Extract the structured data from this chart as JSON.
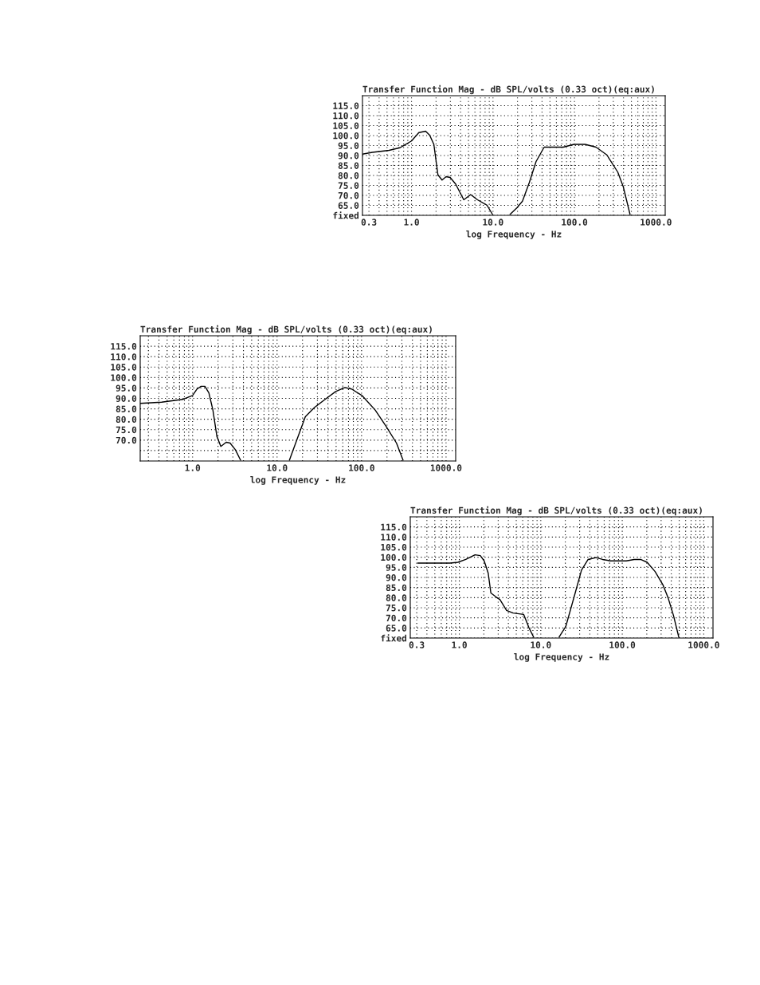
{
  "chart_data": [
    {
      "type": "line",
      "title": "Transfer Function Mag - dB SPL/volts (0.33 oct)(eq:aux)",
      "xlabel": "log Frequency - Hz",
      "log": "x",
      "grid": true,
      "xlim": [
        0.25,
        1300
      ],
      "ylim": [
        60,
        120
      ],
      "xticks": [
        0.3,
        {
          "value": 1,
          "label": "1.0"
        },
        {
          "value": 10,
          "label": "10.0"
        },
        {
          "value": 100,
          "label": "100.0"
        },
        {
          "value": 1000,
          "label": "1000.0"
        }
      ],
      "yticks": [
        {
          "value": 60,
          "label": "fixed"
        },
        {
          "value": 65,
          "label": "65.0"
        },
        {
          "value": 70,
          "label": "70.0"
        },
        {
          "value": 75,
          "label": "75.0"
        },
        {
          "value": 80,
          "label": "80.0"
        },
        {
          "value": 85,
          "label": "85.0"
        },
        {
          "value": 90,
          "label": "90.0"
        },
        {
          "value": 95,
          "label": "95.0"
        },
        {
          "value": 100,
          "label": "100.0"
        },
        {
          "value": 105,
          "label": "105.0"
        },
        {
          "value": 110,
          "label": "110.0"
        },
        {
          "value": 115,
          "label": "115.0"
        }
      ],
      "series": [
        {
          "color": "#000000",
          "x": [
            0.25,
            0.33,
            0.53,
            0.72,
            1.0,
            1.23,
            1.49,
            1.67,
            1.88,
            2.11,
            2.37,
            2.66,
            2.98,
            3.48,
            4.38,
            5.32,
            6.45,
            8.44,
            9.85
          ],
          "values": [
            90.7,
            91.6,
            92.6,
            93.9,
            97.3,
            101.5,
            102.2,
            100.2,
            95.6,
            80.3,
            77.7,
            79.4,
            79.0,
            75.7,
            67.8,
            70.4,
            67.8,
            65.1,
            60.5
          ]
        },
        {
          "color": "#000000",
          "x": [
            16.2,
            19.7,
            23.0,
            27.9,
            33.8,
            42.5,
            57.9,
            72.9,
            98.6,
            135,
            184,
            250,
            340,
            397,
            481
          ],
          "values": [
            60.5,
            63.8,
            67.1,
            76.4,
            87.0,
            94.2,
            94.2,
            94.2,
            95.6,
            95.6,
            94.2,
            90.3,
            81.7,
            74.4,
            60.5
          ]
        }
      ]
    },
    {
      "type": "line",
      "title": "Transfer Function Mag - dB SPL/volts (0.33 oct)(eq:aux)",
      "xlabel": "log Frequency - Hz",
      "log": "x",
      "grid": true,
      "xlim": [
        0.24,
        1300
      ],
      "ylim": [
        60,
        120
      ],
      "xticks": [
        {
          "value": 0.3,
          "label": null
        },
        {
          "value": 1,
          "label": "1.0"
        },
        {
          "value": 10,
          "label": "10.0"
        },
        {
          "value": 100,
          "label": "100.0"
        },
        {
          "value": 1000,
          "label": "1000.0"
        }
      ],
      "yticks": [
        {
          "value": 65,
          "label": null
        },
        {
          "value": 70,
          "label": "70.0"
        },
        {
          "value": 75,
          "label": "75.0"
        },
        {
          "value": 80,
          "label": "80.0"
        },
        {
          "value": 85,
          "label": "85.0"
        },
        {
          "value": 90,
          "label": "90.0"
        },
        {
          "value": 95,
          "label": "95.0"
        },
        {
          "value": 100,
          "label": "100.0"
        },
        {
          "value": 105,
          "label": "105.0"
        },
        {
          "value": 110,
          "label": "110.0"
        },
        {
          "value": 115,
          "label": "115.0"
        }
      ],
      "series": [
        {
          "color": "#000000",
          "x": [
            0.24,
            0.43,
            0.76,
            1.0,
            1.13,
            1.26,
            1.4,
            1.56,
            1.74,
            1.94,
            2.16,
            2.5,
            2.78,
            3.21,
            3.7
          ],
          "values": [
            87.6,
            88.2,
            89.5,
            91.4,
            94.5,
            95.8,
            95.8,
            92.6,
            84.4,
            71.8,
            67.0,
            69.0,
            68.6,
            65.4,
            60.4
          ]
        },
        {
          "color": "#000000",
          "x": [
            14.0,
            16.8,
            21.6,
            27.8,
            37.0,
            49.4,
            63.5,
            76.1,
            101,
            145,
            194,
            259,
            310
          ],
          "values": [
            60.4,
            69.2,
            81.2,
            85.7,
            89.5,
            93.3,
            95.2,
            94.5,
            91.4,
            84.4,
            76.8,
            68.6,
            60.4
          ]
        }
      ]
    },
    {
      "type": "line",
      "title": "Transfer Function Mag - dB SPL/volts (0.33 oct)(eq:aux)",
      "xlabel": "log Frequency - Hz",
      "log": "x",
      "grid": true,
      "xlim": [
        0.25,
        1300
      ],
      "ylim": [
        60,
        120
      ],
      "xticks": [
        0.3,
        {
          "value": 1,
          "label": "1.0"
        },
        {
          "value": 10,
          "label": "10.0"
        },
        {
          "value": 100,
          "label": "100.0"
        },
        {
          "value": 1000,
          "label": "1000.0"
        }
      ],
      "yticks": [
        {
          "value": 60,
          "label": "fixed"
        },
        {
          "value": 65,
          "label": "65.0"
        },
        {
          "value": 70,
          "label": "70.0"
        },
        {
          "value": 75,
          "label": "75.0"
        },
        {
          "value": 80,
          "label": "80.0"
        },
        {
          "value": 85,
          "label": "85.0"
        },
        {
          "value": 90,
          "label": "90.0"
        },
        {
          "value": 95,
          "label": "95.0"
        },
        {
          "value": 100,
          "label": "100.0"
        },
        {
          "value": 105,
          "label": "105.0"
        },
        {
          "value": 110,
          "label": "110.0"
        },
        {
          "value": 115,
          "label": "115.0"
        }
      ],
      "series": [
        {
          "color": "#000000",
          "x": [
            0.31,
            0.77,
            0.96,
            1.2,
            1.56,
            1.81,
            2.02,
            2.26,
            2.44,
            2.83,
            3.16,
            3.8,
            4.58,
            6.16,
            7.16,
            8.16
          ],
          "values": [
            97.1,
            97.1,
            97.5,
            98.9,
            101.2,
            100.8,
            98.2,
            92.2,
            82.3,
            80.3,
            79.0,
            73.7,
            72.4,
            71.7,
            65.1,
            60.5
          ]
        },
        {
          "color": "#000000",
          "x": [
            16.8,
            20.3,
            26.2,
            31.6,
            38.1,
            47.6,
            57.3,
            71.6,
            112,
            140,
            168,
            202,
            253,
            316,
            367,
            426,
            494
          ],
          "values": [
            60.5,
            65.8,
            81.7,
            93.6,
            98.9,
            99.8,
            98.9,
            98.2,
            98.2,
            98.9,
            98.9,
            97.5,
            92.9,
            86.3,
            79.7,
            71.1,
            60.5
          ]
        }
      ]
    }
  ]
}
